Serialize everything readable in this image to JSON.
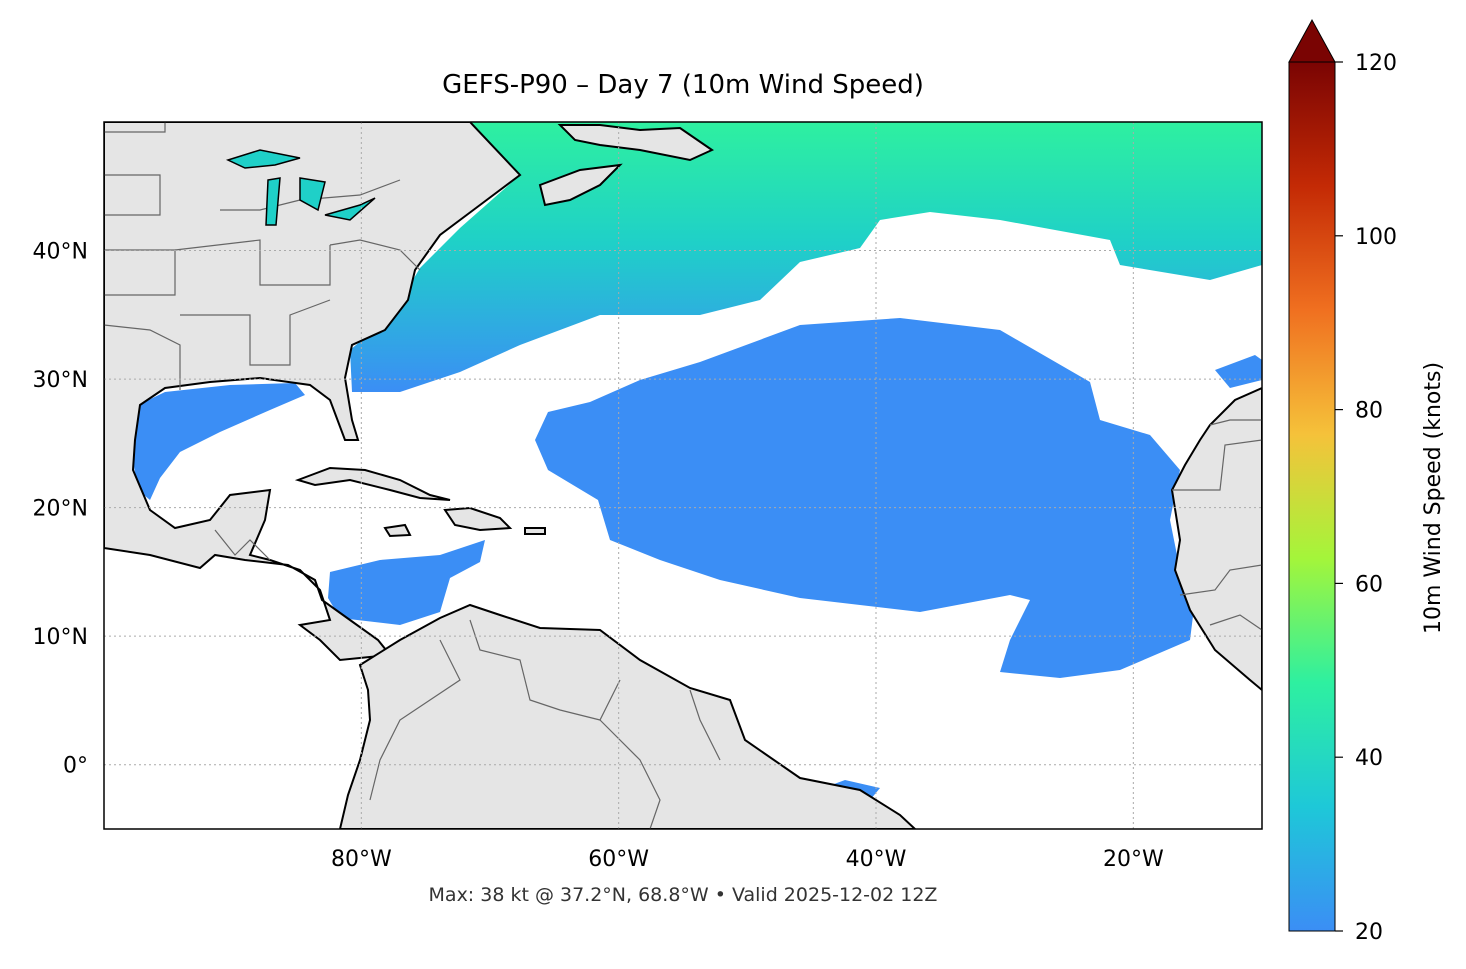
{
  "title": "GEFS-P90 – Day 7 (10m Wind Speed)",
  "footer": "Max: 38 kt @ 37.2°N, 68.8°W • Valid 2025-12-02 12Z",
  "map": {
    "lon_range": [
      -100,
      -10
    ],
    "lat_range": [
      -5,
      50
    ],
    "gridlines": "dotted",
    "lat_ticks": [
      {
        "value": 40,
        "label": "40°N"
      },
      {
        "value": 30,
        "label": "30°N"
      },
      {
        "value": 20,
        "label": "20°N"
      },
      {
        "value": 10,
        "label": "10°N"
      },
      {
        "value": 0,
        "label": "0°"
      }
    ],
    "lon_ticks": [
      {
        "value": -80,
        "label": "80°W"
      },
      {
        "value": -60,
        "label": "60°W"
      },
      {
        "value": -40,
        "label": "40°W"
      },
      {
        "value": -20,
        "label": "20°W"
      }
    ],
    "colors": {
      "land": "#e5e5e5",
      "ocean": "#ffffff",
      "coastline": "#000000",
      "borders": "#666666",
      "wind_low": "#3b8ef5",
      "wind_mid": "#1fd0c8",
      "wind_high": "#2ef0a0"
    }
  },
  "colorbar": {
    "label": "10m Wind Speed (knots)",
    "range": [
      20,
      120
    ],
    "extend": "max",
    "ticks": [
      {
        "value": 120,
        "label": "120"
      },
      {
        "value": 100,
        "label": "100"
      },
      {
        "value": 80,
        "label": "80"
      },
      {
        "value": 60,
        "label": "60"
      },
      {
        "value": 40,
        "label": "40"
      },
      {
        "value": 20,
        "label": "20"
      }
    ],
    "colors": [
      "#3b8ef5",
      "#1ec8d8",
      "#2ef0a0",
      "#a4f53a",
      "#f5c23a",
      "#f07020",
      "#c42a05",
      "#7a0403"
    ]
  }
}
